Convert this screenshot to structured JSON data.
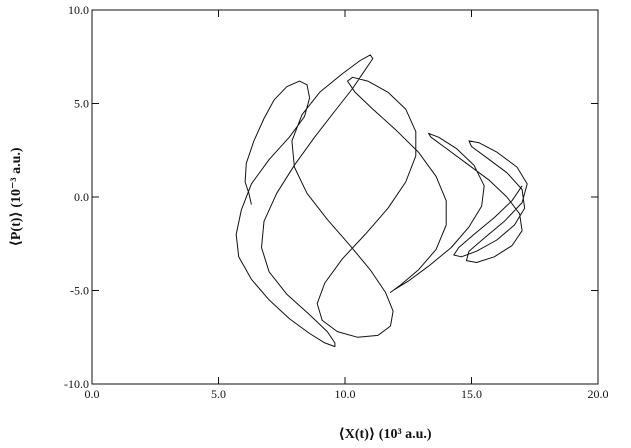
{
  "chart_data": {
    "type": "line",
    "title": "",
    "xlabel": "⟨X(t)⟩   (10³ a.u.)",
    "ylabel": "⟨P(t)⟩   (10⁻³ a.u.)",
    "xlim": [
      0,
      20
    ],
    "ylim": [
      -10,
      10
    ],
    "x_ticks": [
      "0.0",
      "5.0",
      "10.0",
      "15.0",
      "20.0"
    ],
    "y_ticks": [
      "-10.0",
      "-5.0",
      "0.0",
      "5.0",
      "10.0"
    ],
    "x_tick_values": [
      0,
      5,
      10,
      15,
      20
    ],
    "y_tick_values": [
      -10,
      -5,
      0,
      5,
      10
    ],
    "grid": false,
    "colors": {
      "line": "#111111",
      "background": "#ffffff"
    },
    "series": [
      {
        "x": [
          6.3,
          6.2,
          6.05,
          6.1,
          6.4,
          6.8,
          7.2,
          7.7,
          8.2,
          8.5,
          8.6,
          8.4,
          7.8,
          7.0,
          6.3,
          5.9,
          5.7,
          5.8,
          6.3,
          7.0,
          7.8,
          8.6,
          9.2,
          9.6,
          9.6,
          9.3,
          8.6,
          7.7,
          7.0,
          6.7,
          6.8,
          7.3,
          8.0,
          8.8,
          9.6,
          10.3,
          10.8,
          11.1,
          11.0,
          10.6,
          9.9,
          9.0,
          8.3,
          7.9,
          8.0,
          8.5,
          9.3,
          10.2,
          11.0,
          11.6,
          11.9,
          11.8,
          11.3,
          10.5,
          9.7,
          9.1,
          8.9,
          9.2,
          9.9,
          10.8,
          11.7,
          12.4,
          12.8,
          12.8,
          12.4,
          11.7,
          10.9,
          10.3,
          10.1,
          10.4,
          11.1,
          12.0,
          12.9,
          13.6,
          14.0,
          14.0,
          13.6,
          12.9,
          12.2,
          11.8,
          11.9,
          12.5,
          13.3,
          14.2,
          14.9,
          15.4,
          15.5,
          15.1,
          14.4,
          13.7,
          13.3,
          13.4,
          14.0,
          14.8,
          15.7,
          16.4,
          16.9,
          17.0,
          16.6,
          15.9,
          15.2,
          14.8,
          14.9,
          15.5,
          16.3,
          17.0,
          17.2,
          16.8,
          16.0,
          15.3,
          14.9,
          15.0,
          15.6,
          16.4,
          17.0,
          17.1,
          16.7,
          16.0,
          15.2,
          14.6,
          14.3,
          14.5,
          15.1,
          15.9,
          16.6,
          17.0
        ],
        "y": [
          -0.4,
          0.2,
          0.8,
          1.8,
          3.0,
          4.2,
          5.2,
          5.9,
          6.2,
          6.0,
          5.3,
          4.3,
          3.2,
          2.0,
          0.7,
          -0.7,
          -2.0,
          -3.2,
          -4.4,
          -5.5,
          -6.5,
          -7.3,
          -7.8,
          -8.0,
          -7.8,
          -7.2,
          -6.3,
          -5.2,
          -4.0,
          -2.7,
          -1.3,
          0.2,
          1.7,
          3.2,
          4.6,
          5.8,
          6.8,
          7.4,
          7.6,
          7.3,
          6.6,
          5.6,
          4.4,
          3.0,
          1.6,
          0.2,
          -1.2,
          -2.6,
          -3.9,
          -5.1,
          -6.1,
          -6.9,
          -7.4,
          -7.5,
          -7.2,
          -6.6,
          -5.7,
          -4.6,
          -3.3,
          -2.0,
          -0.6,
          0.8,
          2.2,
          3.5,
          4.7,
          5.6,
          6.2,
          6.4,
          6.2,
          5.6,
          4.7,
          3.6,
          2.4,
          1.1,
          -0.2,
          -1.5,
          -2.8,
          -3.9,
          -4.7,
          -5.1,
          -5.0,
          -4.5,
          -3.7,
          -2.7,
          -1.6,
          -0.5,
          0.6,
          1.7,
          2.6,
          3.2,
          3.4,
          3.2,
          2.6,
          1.8,
          0.9,
          0.0,
          -0.9,
          -1.8,
          -2.6,
          -3.2,
          -3.5,
          -3.4,
          -2.9,
          -2.2,
          -1.3,
          -0.3,
          0.7,
          1.6,
          2.4,
          2.9,
          3.0,
          2.7,
          2.1,
          1.3,
          0.4,
          -0.6,
          -1.5,
          -2.3,
          -2.9,
          -3.2,
          -3.1,
          -2.7,
          -2.0,
          -1.1,
          -0.2,
          0.6
        ]
      }
    ]
  }
}
